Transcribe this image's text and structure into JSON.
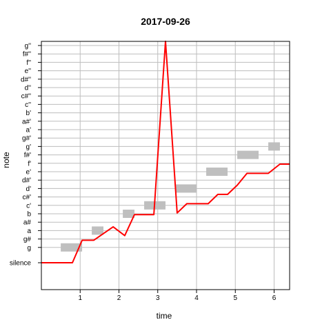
{
  "chart_data": {
    "type": "line",
    "title": "2017-09-26",
    "xlabel": "time",
    "ylabel": "note",
    "xlim": [
      0.0,
      6.4
    ],
    "x_ticks": [
      1,
      2,
      3,
      4,
      5,
      6
    ],
    "y_categories": [
      "silence",
      "g",
      "g#",
      "a",
      "a#",
      "b",
      "c'",
      "c#'",
      "d'",
      "d#'",
      "e'",
      "f'",
      "f#'",
      "g'",
      "g#'",
      "a'",
      "a#'",
      "b'",
      "c''",
      "c#''",
      "d''",
      "d#''",
      "e''",
      "f''",
      "f#''",
      "g''"
    ],
    "y_tick_labels": [
      "silence",
      "g",
      "g#",
      "a",
      "a#",
      "b",
      "c'",
      "c#'",
      "d'",
      "d#'",
      "e'",
      "f'",
      "f#'",
      "g'",
      "g#'",
      "a'",
      "a#'",
      "b'",
      "c''",
      "c#''",
      "d''",
      "d#''",
      "e''",
      "f''",
      "f#''",
      "g''"
    ],
    "grid": true,
    "reference_notes": {
      "color": "#bfbfbf",
      "segments": [
        {
          "start": 0.5,
          "end": 1.05,
          "note": "g"
        },
        {
          "start": 1.3,
          "end": 1.6,
          "note": "a"
        },
        {
          "start": 2.1,
          "end": 2.4,
          "note": "b"
        },
        {
          "start": 2.65,
          "end": 3.2,
          "note": "c'"
        },
        {
          "start": 3.45,
          "end": 4.0,
          "note": "d'"
        },
        {
          "start": 4.25,
          "end": 4.8,
          "note": "e'"
        },
        {
          "start": 5.05,
          "end": 5.6,
          "note": "f#'"
        },
        {
          "start": 5.85,
          "end": 6.15,
          "note": "g'"
        }
      ]
    },
    "series": [
      {
        "color": "#ff0000",
        "points": [
          [
            0.0,
            0
          ],
          [
            0.8,
            0
          ],
          [
            1.05,
            1.85
          ],
          [
            1.35,
            1.85
          ],
          [
            1.85,
            3.45
          ],
          [
            2.15,
            2.4
          ],
          [
            2.4,
            4.9
          ],
          [
            2.9,
            4.9
          ],
          [
            3.2,
            25.5
          ],
          [
            3.5,
            5.1
          ],
          [
            3.75,
            6.2
          ],
          [
            4.3,
            6.2
          ],
          [
            4.55,
            7.3
          ],
          [
            4.8,
            7.3
          ],
          [
            5.05,
            8.4
          ],
          [
            5.3,
            9.8
          ],
          [
            5.85,
            9.8
          ],
          [
            6.15,
            10.9
          ],
          [
            6.4,
            10.9
          ]
        ]
      }
    ]
  }
}
